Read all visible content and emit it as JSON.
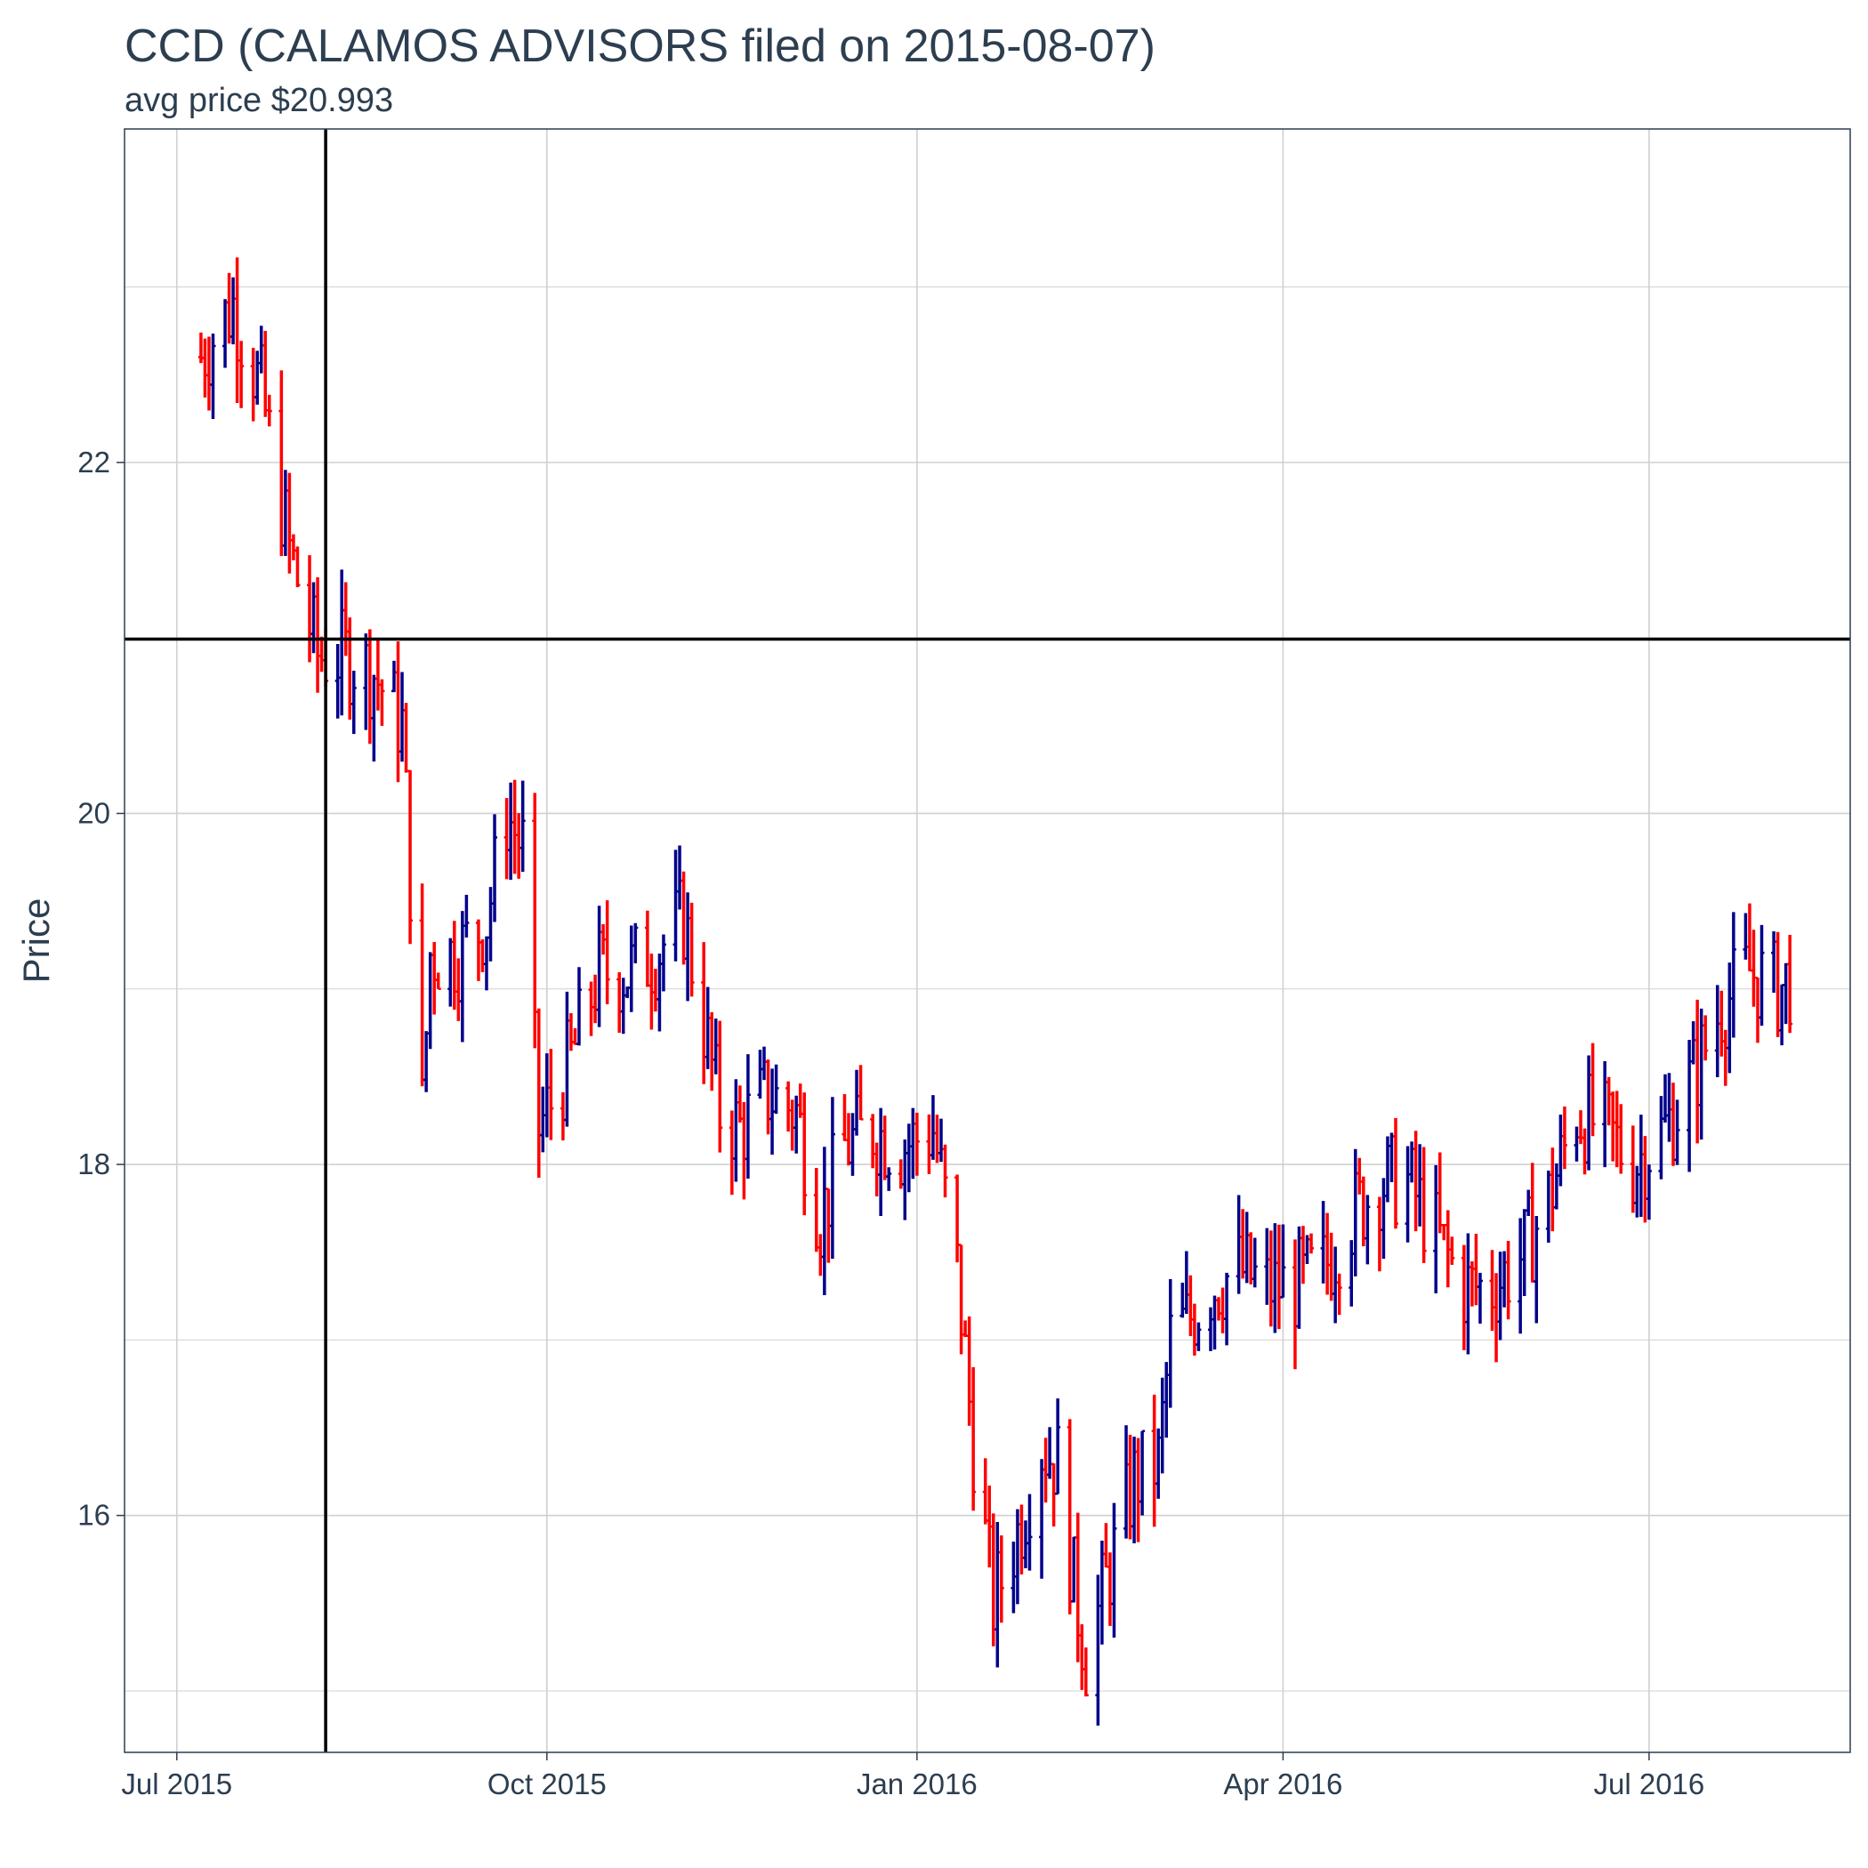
{
  "chart_data": {
    "type": "ohlc",
    "title": "CCD (CALAMOS ADVISORS filed on 2015-08-07)",
    "subtitle": "avg price $20.993",
    "xlabel": "",
    "ylabel": "Price",
    "x_ticks": [
      {
        "date": "2015-07-01",
        "label": "Jul 2015"
      },
      {
        "date": "2015-10-01",
        "label": "Oct 2015"
      },
      {
        "date": "2016-01-01",
        "label": "Jan 2016"
      },
      {
        "date": "2016-04-01",
        "label": "Apr 2016"
      },
      {
        "date": "2016-07-01",
        "label": "Jul 2016"
      }
    ],
    "y_ticks": [
      16,
      18,
      20,
      22
    ],
    "xlim": [
      "2015-06-18",
      "2016-08-20"
    ],
    "ylim": [
      14.65,
      23.9
    ],
    "grid": true,
    "vline_date": "2015-08-07",
    "hline_value": 20.993,
    "colors": {
      "up": "#00008b",
      "down": "#ff0000",
      "reference": "#000000",
      "grid": "#d0d0d0",
      "border": "#2c3e50"
    },
    "series_points": [
      [
        "2015-07-07",
        22.6
      ],
      [
        "2015-07-15",
        22.9
      ],
      [
        "2015-07-22",
        22.4
      ],
      [
        "2015-07-29",
        21.5
      ],
      [
        "2015-08-05",
        20.9
      ],
      [
        "2015-08-12",
        20.9
      ],
      [
        "2015-08-19",
        20.8
      ],
      [
        "2015-08-26",
        20.5
      ],
      [
        "2015-08-31",
        18.3
      ],
      [
        "2015-09-02",
        19.2
      ],
      [
        "2015-09-09",
        19.2
      ],
      [
        "2015-09-16",
        19.4
      ],
      [
        "2015-09-21",
        20.0
      ],
      [
        "2015-09-25",
        19.8
      ],
      [
        "2015-09-29",
        18.2
      ],
      [
        "2015-10-07",
        18.6
      ],
      [
        "2015-10-14",
        19.1
      ],
      [
        "2015-10-21",
        19.1
      ],
      [
        "2015-10-28",
        19.2
      ],
      [
        "2015-11-04",
        19.4
      ],
      [
        "2015-11-09",
        18.8
      ],
      [
        "2015-11-13",
        18.3
      ],
      [
        "2015-11-18",
        18.2
      ],
      [
        "2015-11-25",
        18.4
      ],
      [
        "2015-12-02",
        18.3
      ],
      [
        "2015-12-08",
        17.7
      ],
      [
        "2015-12-14",
        18.1
      ],
      [
        "2015-12-21",
        18.2
      ],
      [
        "2015-12-28",
        18.1
      ],
      [
        "2016-01-05",
        18.2
      ],
      [
        "2016-01-11",
        17.4
      ],
      [
        "2016-01-15",
        16.4
      ],
      [
        "2016-01-20",
        15.5
      ],
      [
        "2016-01-26",
        15.9
      ],
      [
        "2016-02-01",
        16.4
      ],
      [
        "2016-02-05",
        16.3
      ],
      [
        "2016-02-09",
        15.6
      ],
      [
        "2016-02-12",
        15.2
      ],
      [
        "2016-02-18",
        15.7
      ],
      [
        "2016-02-24",
        16.2
      ],
      [
        "2016-03-01",
        16.3
      ],
      [
        "2016-03-04",
        17.0
      ],
      [
        "2016-03-08",
        17.1
      ],
      [
        "2016-03-14",
        17.3
      ],
      [
        "2016-03-21",
        17.4
      ],
      [
        "2016-03-28",
        17.3
      ],
      [
        "2016-04-04",
        17.3
      ],
      [
        "2016-04-11",
        17.4
      ],
      [
        "2016-04-18",
        17.7
      ],
      [
        "2016-04-25",
        17.9
      ],
      [
        "2016-05-02",
        17.9
      ],
      [
        "2016-05-09",
        17.6
      ],
      [
        "2016-05-16",
        17.3
      ],
      [
        "2016-05-23",
        17.3
      ],
      [
        "2016-05-31",
        17.5
      ],
      [
        "2016-06-06",
        17.8
      ],
      [
        "2016-06-13",
        18.3
      ],
      [
        "2016-06-20",
        18.2
      ],
      [
        "2016-06-27",
        18.0
      ],
      [
        "2016-07-05",
        18.2
      ],
      [
        "2016-07-12",
        18.5
      ],
      [
        "2016-07-19",
        18.9
      ],
      [
        "2016-07-26",
        19.1
      ],
      [
        "2016-08-02",
        19.0
      ],
      [
        "2016-08-08",
        19.1
      ]
    ]
  }
}
